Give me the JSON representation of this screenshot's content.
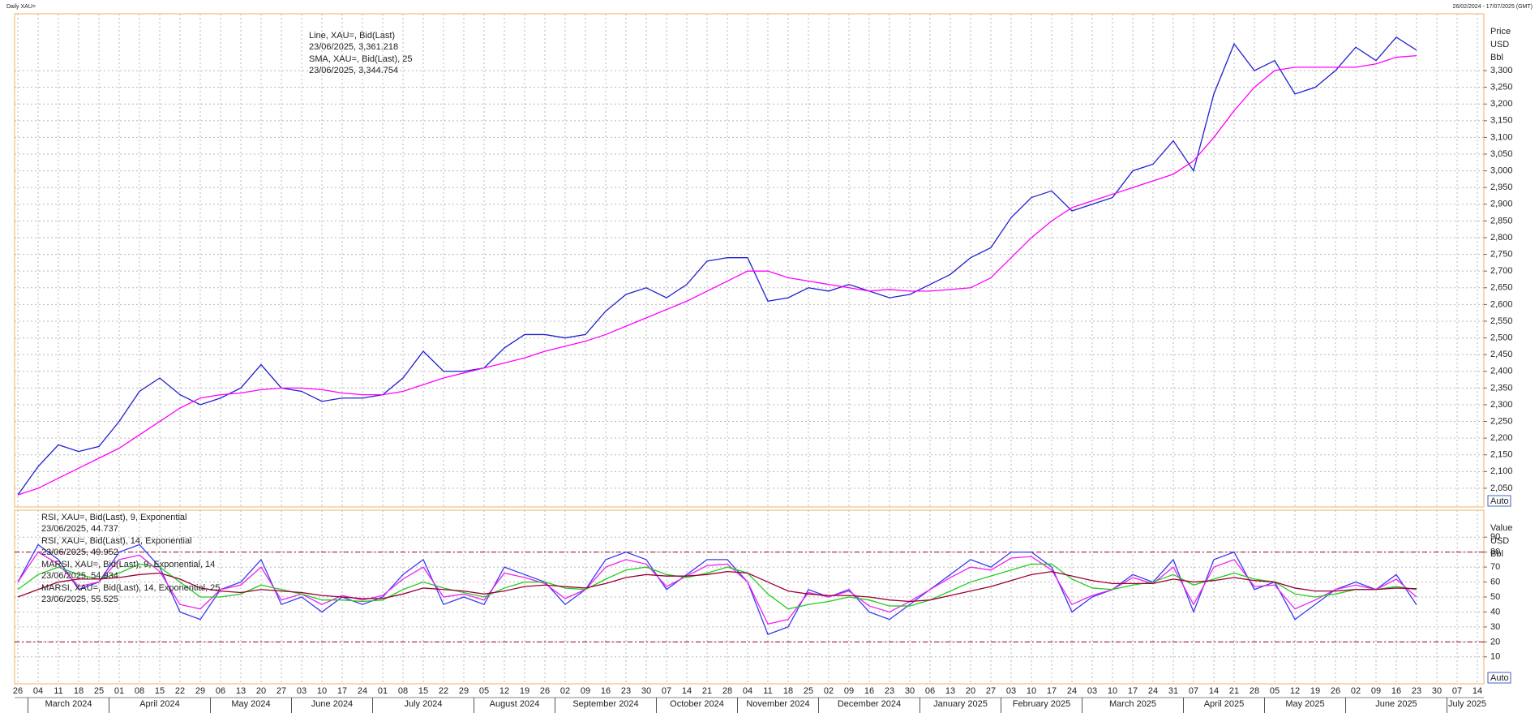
{
  "header": {
    "left": "Daily XAU=",
    "right": "26/02/2024 - 17/07/2025 (GMT)"
  },
  "chart_data": [
    {
      "type": "line",
      "categories": [
        "26",
        "04",
        "11",
        "18",
        "25",
        "01",
        "08",
        "15",
        "22",
        "29",
        "06",
        "13",
        "20",
        "27",
        "03",
        "10",
        "17",
        "24",
        "01",
        "08",
        "15",
        "22",
        "29",
        "05",
        "12",
        "19",
        "26",
        "02",
        "09",
        "16",
        "23",
        "30",
        "07",
        "14",
        "21",
        "28",
        "04",
        "11",
        "18",
        "25",
        "02",
        "09",
        "16",
        "23",
        "30",
        "06",
        "13",
        "20",
        "27",
        "03",
        "10",
        "17",
        "24",
        "03",
        "10",
        "17",
        "24",
        "31",
        "07",
        "14",
        "21",
        "28",
        "05",
        "12",
        "19",
        "26",
        "02",
        "09",
        "16",
        "23",
        "30",
        "07",
        "14"
      ],
      "month_labels": [
        "March 2024",
        "April 2024",
        "May 2024",
        "June 2024",
        "July 2024",
        "August 2024",
        "September 2024",
        "October 2024",
        "November 2024",
        "December 2024",
        "January 2025",
        "February 2025",
        "March 2025",
        "April 2025",
        "May 2025",
        "June 2025",
        "July 2025"
      ],
      "axis_labels": [
        "Price",
        "USD",
        "Bbl"
      ],
      "scale_mode": "Auto",
      "ylim": [
        1994,
        3470
      ],
      "yticks": [
        {
          "value": 2050,
          "label": "2,050"
        },
        {
          "value": 2100,
          "label": "2,100"
        },
        {
          "value": 2150,
          "label": "2,150"
        },
        {
          "value": 2200,
          "label": "2,200"
        },
        {
          "value": 2250,
          "label": "2,250"
        },
        {
          "value": 2300,
          "label": "2,300"
        },
        {
          "value": 2350,
          "label": "2,350"
        },
        {
          "value": 2400,
          "label": "2,400"
        },
        {
          "value": 2450,
          "label": "2,450"
        },
        {
          "value": 2500,
          "label": "2,500"
        },
        {
          "value": 2550,
          "label": "2,550"
        },
        {
          "value": 2600,
          "label": "2,600"
        },
        {
          "value": 2650,
          "label": "2,650"
        },
        {
          "value": 2700,
          "label": "2,700"
        },
        {
          "value": 2750,
          "label": "2,750"
        },
        {
          "value": 2800,
          "label": "2,800"
        },
        {
          "value": 2850,
          "label": "2,850"
        },
        {
          "value": 2900,
          "label": "2,900"
        },
        {
          "value": 2950,
          "label": "2,950"
        },
        {
          "value": 3000,
          "label": "3,000"
        },
        {
          "value": 3050,
          "label": "3,050"
        },
        {
          "value": 3100,
          "label": "3,100"
        },
        {
          "value": 3150,
          "label": "3,150"
        },
        {
          "value": 3200,
          "label": "3,200"
        },
        {
          "value": 3250,
          "label": "3,250"
        },
        {
          "value": 3300,
          "label": "3,300"
        }
      ],
      "grid": true,
      "series": [
        {
          "name": "Line, XAU=, Bid(Last)",
          "annotation": "23/06/2025, 3,361.218",
          "color": "#2020d0",
          "values": [
            2030,
            2115,
            2180,
            2160,
            2175,
            2250,
            2340,
            2380,
            2330,
            2300,
            2320,
            2350,
            2420,
            2350,
            2340,
            2310,
            2320,
            2320,
            2330,
            2380,
            2460,
            2400,
            2400,
            2410,
            2470,
            2510,
            2510,
            2500,
            2510,
            2580,
            2630,
            2650,
            2620,
            2660,
            2730,
            2740,
            2740,
            2610,
            2620,
            2650,
            2640,
            2660,
            2640,
            2620,
            2630,
            2660,
            2690,
            2740,
            2770,
            2860,
            2920,
            2940,
            2880,
            2900,
            2920,
            3000,
            3020,
            3090,
            3000,
            3230,
            3380,
            3300,
            3330,
            3230,
            3250,
            3300,
            3370,
            3330,
            3400,
            3361.218,
            null,
            null,
            null
          ]
        },
        {
          "name": "SMA, XAU=, Bid(Last),  25",
          "annotation": "23/06/2025, 3,344.754",
          "color": "#ff00ff",
          "values": [
            2030,
            2050,
            2080,
            2110,
            2140,
            2170,
            2210,
            2250,
            2290,
            2320,
            2330,
            2335,
            2345,
            2350,
            2350,
            2345,
            2335,
            2330,
            2330,
            2340,
            2360,
            2380,
            2395,
            2410,
            2425,
            2440,
            2460,
            2475,
            2490,
            2510,
            2535,
            2560,
            2585,
            2610,
            2640,
            2670,
            2700,
            2700,
            2680,
            2670,
            2660,
            2650,
            2640,
            2645,
            2640,
            2640,
            2645,
            2650,
            2680,
            2740,
            2800,
            2850,
            2890,
            2910,
            2930,
            2950,
            2970,
            2990,
            3030,
            3100,
            3180,
            3250,
            3300,
            3310,
            3310,
            3310,
            3310,
            3320,
            3340,
            3344.754,
            null,
            null,
            null
          ]
        }
      ]
    },
    {
      "type": "line",
      "axis_labels": [
        "Value",
        "USD",
        "Bbl"
      ],
      "scale_mode": "Auto",
      "ylim": [
        -8,
        108
      ],
      "yticks": [
        10,
        20,
        30,
        40,
        50,
        60,
        70,
        80,
        90
      ],
      "ref_lines": [
        20,
        80
      ],
      "grid": true,
      "series": [
        {
          "name": "RSI, XAU=, Bid(Last),  9, Exponential",
          "annotation": "23/06/2025, 44.737",
          "color": "#3a3aee",
          "values": [
            60,
            85,
            75,
            55,
            60,
            80,
            85,
            70,
            40,
            35,
            55,
            60,
            75,
            45,
            50,
            40,
            50,
            45,
            50,
            65,
            75,
            45,
            50,
            45,
            70,
            65,
            60,
            45,
            55,
            75,
            80,
            75,
            55,
            65,
            75,
            75,
            60,
            25,
            30,
            55,
            50,
            55,
            40,
            35,
            45,
            55,
            65,
            75,
            70,
            80,
            80,
            70,
            40,
            50,
            55,
            65,
            60,
            75,
            40,
            75,
            80,
            55,
            60,
            35,
            45,
            55,
            60,
            55,
            65,
            44.737,
            null,
            null,
            null
          ]
        },
        {
          "name": "RSI, XAU=, Bid(Last),  14, Exponential",
          "annotation": "23/06/2025, 49.952",
          "color": "#ee22ee",
          "values": [
            60,
            80,
            72,
            57,
            60,
            75,
            78,
            67,
            45,
            42,
            55,
            58,
            70,
            48,
            52,
            45,
            51,
            48,
            51,
            62,
            70,
            50,
            52,
            48,
            66,
            63,
            59,
            49,
            55,
            70,
            75,
            72,
            57,
            64,
            71,
            72,
            60,
            32,
            35,
            53,
            50,
            54,
            44,
            40,
            47,
            55,
            63,
            70,
            68,
            76,
            77,
            68,
            45,
            51,
            55,
            63,
            59,
            70,
            45,
            70,
            75,
            57,
            58,
            42,
            48,
            55,
            58,
            55,
            62,
            49.952,
            null,
            null,
            null
          ]
        },
        {
          "name": "MARSI, XAU=, Bid(Last),  9, Exponential, 14",
          "annotation": "23/06/2025, 54.934",
          "color": "#22cc22",
          "values": [
            55,
            65,
            70,
            65,
            62,
            66,
            72,
            70,
            60,
            50,
            50,
            52,
            58,
            55,
            52,
            48,
            48,
            47,
            48,
            55,
            60,
            56,
            53,
            50,
            56,
            60,
            60,
            56,
            55,
            62,
            68,
            70,
            65,
            63,
            66,
            70,
            66,
            52,
            42,
            45,
            47,
            50,
            48,
            44,
            44,
            48,
            54,
            60,
            64,
            68,
            72,
            72,
            62,
            56,
            55,
            58,
            60,
            65,
            58,
            62,
            66,
            62,
            60,
            52,
            50,
            52,
            55,
            55,
            57,
            54.934,
            null,
            null,
            null
          ]
        },
        {
          "name": "MARSI, XAU=, Bid(Last),  14, Exponential, 25",
          "annotation": "23/06/2025, 55.525",
          "color": "#990033",
          "values": [
            50,
            55,
            60,
            62,
            62,
            63,
            65,
            66,
            62,
            56,
            54,
            53,
            55,
            54,
            53,
            51,
            50,
            49,
            49,
            52,
            56,
            55,
            54,
            52,
            54,
            57,
            58,
            57,
            56,
            59,
            63,
            65,
            64,
            64,
            65,
            67,
            66,
            60,
            54,
            52,
            51,
            51,
            50,
            48,
            47,
            48,
            51,
            54,
            57,
            61,
            65,
            67,
            64,
            61,
            59,
            59,
            59,
            62,
            60,
            61,
            63,
            61,
            60,
            56,
            54,
            54,
            55,
            55,
            56,
            55.525,
            null,
            null,
            null
          ]
        }
      ]
    }
  ]
}
